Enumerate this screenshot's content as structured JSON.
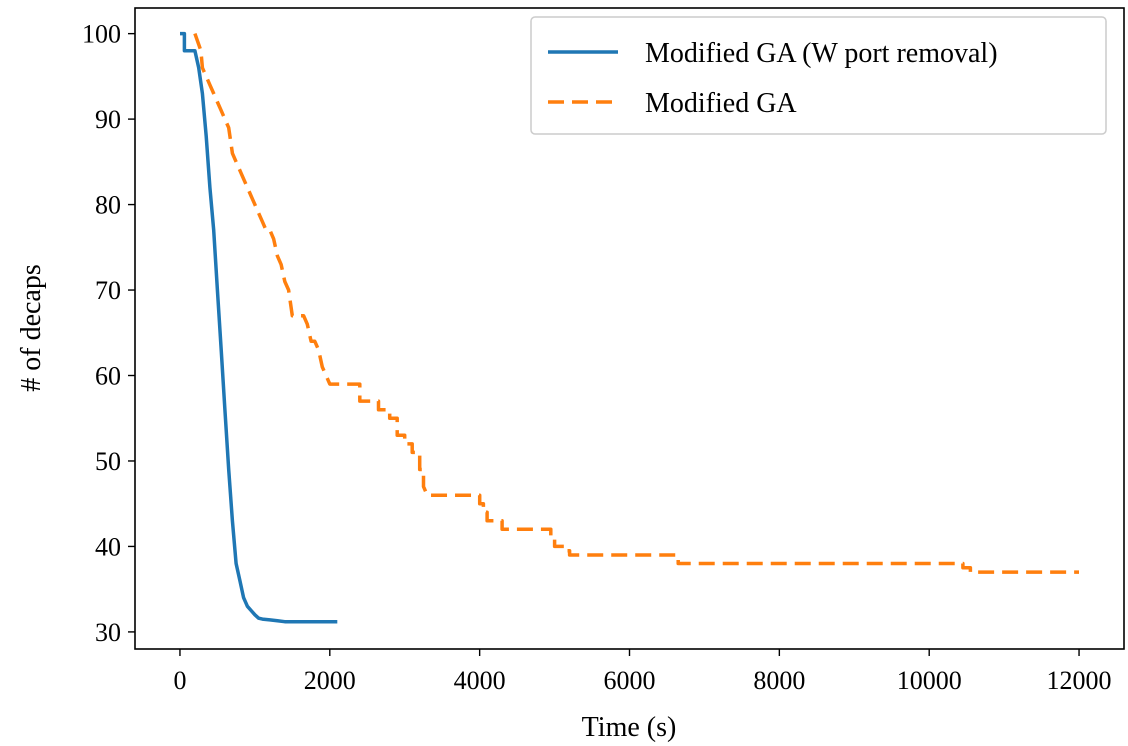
{
  "chart_data": {
    "type": "line",
    "title": "",
    "xlabel": "Time (s)",
    "ylabel": "# of decaps",
    "xlim": [
      -600,
      12600
    ],
    "ylim": [
      28,
      103
    ],
    "xticks": [
      0,
      2000,
      4000,
      6000,
      8000,
      10000,
      12000
    ],
    "xtick_labels": [
      "0",
      "2000",
      "4000",
      "6000",
      "8000",
      "10000",
      "12000"
    ],
    "yticks": [
      30,
      40,
      50,
      60,
      70,
      80,
      90,
      100
    ],
    "ytick_labels": [
      "30",
      "40",
      "50",
      "60",
      "70",
      "80",
      "90",
      "100"
    ],
    "grid": false,
    "legend_position": "top-right",
    "series": [
      {
        "name": "Modified GA (W port removal)",
        "color": "#1f77b4",
        "style": "solid",
        "x": [
          0,
          60,
          60,
          200,
          250,
          300,
          350,
          400,
          450,
          500,
          550,
          600,
          650,
          700,
          750,
          800,
          850,
          900,
          950,
          1000,
          1050,
          1100,
          1200,
          1300,
          1400,
          1500,
          1700,
          1900,
          2100
        ],
        "y": [
          100,
          100,
          98,
          98,
          96,
          93,
          88,
          82,
          77,
          70,
          63,
          56,
          49,
          43,
          38,
          36,
          34,
          33,
          32.5,
          32,
          31.6,
          31.5,
          31.4,
          31.3,
          31.2,
          31.2,
          31.2,
          31.2,
          31.2
        ]
      },
      {
        "name": "Modified GA",
        "color": "#ff7f0e",
        "style": "dashed",
        "x": [
          200,
          280,
          300,
          350,
          400,
          450,
          500,
          550,
          600,
          650,
          700,
          750,
          800,
          850,
          900,
          950,
          1000,
          1050,
          1100,
          1150,
          1200,
          1250,
          1300,
          1350,
          1400,
          1450,
          1500,
          1550,
          1600,
          1650,
          1700,
          1750,
          1800,
          1850,
          1900,
          1950,
          2000,
          2100,
          2400,
          2400,
          2650,
          2650,
          2800,
          2800,
          2900,
          2900,
          3000,
          3000,
          3100,
          3100,
          3200,
          3200,
          3250,
          3250,
          3300,
          4000,
          4000,
          4050,
          4050,
          4100,
          4100,
          4200,
          4200,
          4300,
          4300,
          4950,
          4950,
          5000,
          5000,
          5150,
          5150,
          5200,
          5200,
          6650,
          6650,
          10450,
          10450,
          10550,
          10550,
          12000
        ],
        "y": [
          100,
          98,
          96,
          95,
          94,
          93,
          92,
          91,
          90,
          89,
          86,
          85,
          84,
          83,
          82,
          81,
          80,
          79,
          78,
          77,
          77,
          76,
          74,
          73,
          71,
          70,
          67,
          67,
          67,
          67,
          66,
          64,
          64,
          63,
          61,
          60,
          59,
          59,
          59,
          57,
          57,
          56,
          56,
          55,
          55,
          53,
          53,
          52,
          52,
          51,
          51,
          49,
          49,
          47,
          46,
          46,
          45,
          45,
          44,
          44,
          43,
          43,
          43,
          43,
          42,
          42,
          41,
          41,
          40,
          40,
          39.5,
          39.5,
          39,
          39,
          38,
          38,
          37.5,
          37.5,
          37,
          37
        ]
      }
    ]
  }
}
